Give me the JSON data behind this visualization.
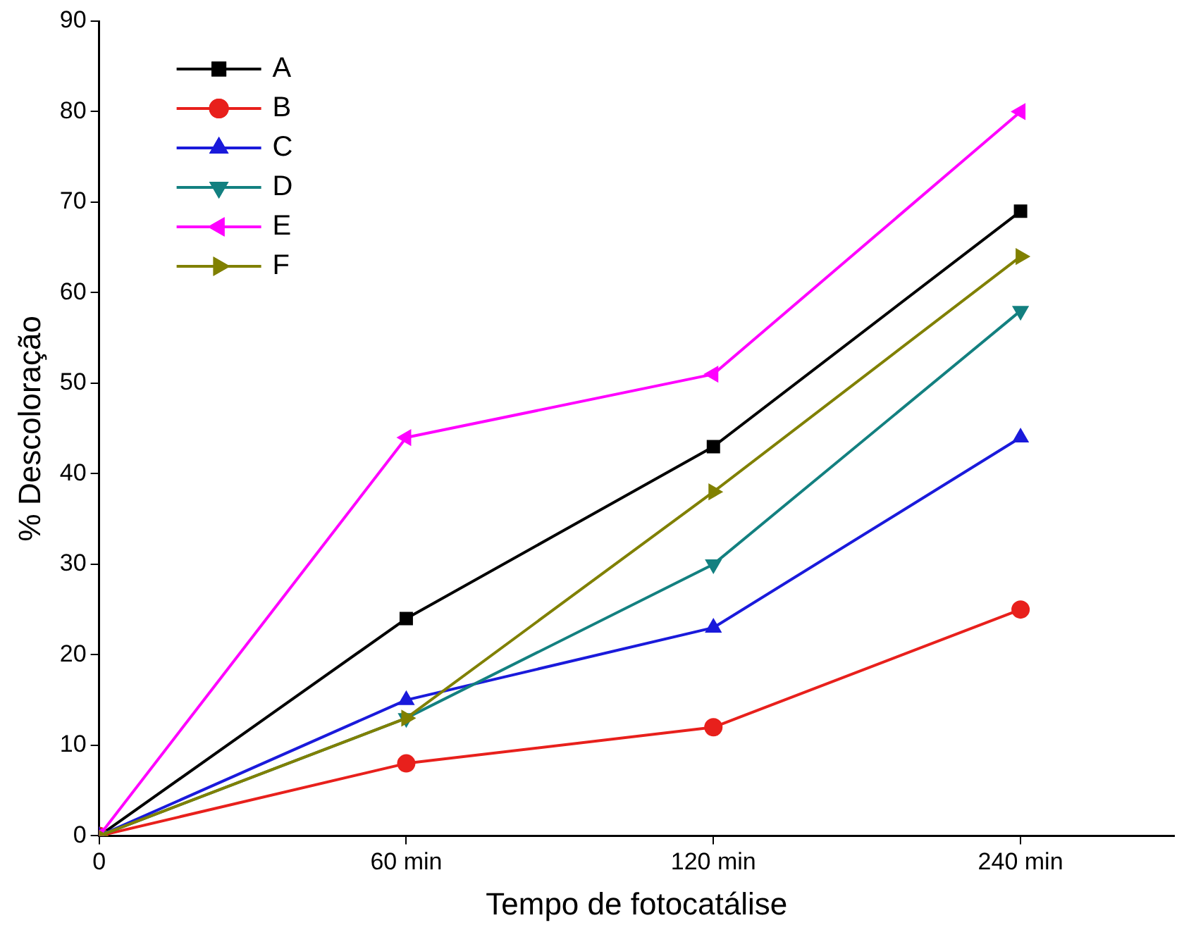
{
  "chart_data": {
    "type": "line",
    "xlabel": "Tempo de fotocatálise",
    "ylabel": "% Descoloração",
    "categories": [
      "0",
      "60 min",
      "120 min",
      "240 min"
    ],
    "ylim": [
      0,
      90
    ],
    "yticks": [
      0,
      10,
      20,
      30,
      40,
      50,
      60,
      70,
      80,
      90
    ],
    "grid": false,
    "legend": "top left",
    "line_style": "solid",
    "series": [
      {
        "name": "A",
        "color": "#000000",
        "marker": "square",
        "values": [
          0,
          24,
          43,
          69
        ]
      },
      {
        "name": "B",
        "color": "#e8201c",
        "marker": "circle",
        "values": [
          0,
          8,
          12,
          25
        ]
      },
      {
        "name": "C",
        "color": "#1a1adb",
        "marker": "triangle",
        "values": [
          0,
          15,
          23,
          44
        ]
      },
      {
        "name": "D",
        "color": "#138080",
        "marker": "triangle-down",
        "values": [
          0,
          13,
          30,
          58
        ]
      },
      {
        "name": "E",
        "color": "#ff00ff",
        "marker": "triangle-left",
        "values": [
          0,
          44,
          51,
          80
        ]
      },
      {
        "name": "F",
        "color": "#808000",
        "marker": "triangle-right",
        "values": [
          0,
          13,
          38,
          64
        ]
      }
    ]
  }
}
